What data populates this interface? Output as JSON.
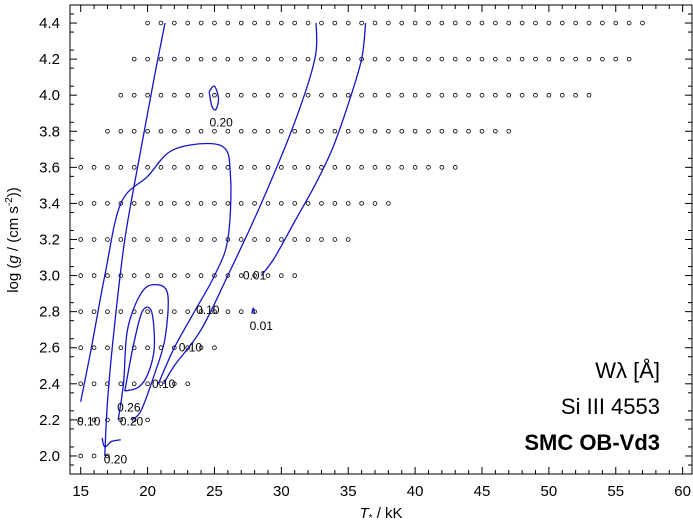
{
  "chart_data": {
    "type": "scatter",
    "title": "",
    "xlabel": "T* / kK",
    "ylabel": "log (g / (cm s^-2))",
    "xlim": [
      14.2,
      60.7
    ],
    "ylim": [
      1.9,
      4.5
    ],
    "x_ticks": [
      15,
      20,
      25,
      30,
      35,
      40,
      45,
      50,
      55,
      60
    ],
    "y_ticks": [
      "2.0",
      "2.2",
      "2.4",
      "2.6",
      "2.8",
      "3.0",
      "3.2",
      "3.4",
      "3.6",
      "3.8",
      "4.0",
      "4.2",
      "4.4"
    ],
    "legend": {
      "quantity": "Wλ [Å]",
      "line": "Si III 4553",
      "grid": "SMC OB-Vd3",
      "placement": "bottom-right"
    },
    "grid_rows": [
      {
        "logg": 4.4,
        "t_min": 20,
        "t_max": 57
      },
      {
        "logg": 4.2,
        "t_min": 19,
        "t_max": 56
      },
      {
        "logg": 4.0,
        "t_min": 18,
        "t_max": 53
      },
      {
        "logg": 3.8,
        "t_min": 17,
        "t_max": 47
      },
      {
        "logg": 3.6,
        "t_min": 15,
        "t_max": 43
      },
      {
        "logg": 3.4,
        "t_min": 15,
        "t_max": 38
      },
      {
        "logg": 3.2,
        "t_min": 15,
        "t_max": 35
      },
      {
        "logg": 3.0,
        "t_min": 15,
        "t_max": 31
      },
      {
        "logg": 2.8,
        "t_min": 15,
        "t_max": 28
      },
      {
        "logg": 2.6,
        "t_min": 15,
        "t_max": 25
      },
      {
        "logg": 2.4,
        "t_min": 15,
        "t_max": 23
      },
      {
        "logg": 2.2,
        "t_min": 15,
        "t_max": 20
      },
      {
        "logg": 2.0,
        "t_min": 15,
        "t_max": 17
      }
    ],
    "contours": [
      {
        "level": "0.01",
        "points": [
          [
            28.5,
            3.0
          ],
          [
            29.5,
            3.1
          ],
          [
            31.0,
            3.3
          ],
          [
            32.5,
            3.5
          ],
          [
            33.8,
            3.7
          ],
          [
            35.0,
            3.95
          ],
          [
            36.0,
            4.2
          ],
          [
            36.3,
            4.4
          ]
        ]
      },
      {
        "level": "0.01",
        "points": [
          [
            27.8,
            2.79
          ],
          [
            27.9,
            2.82
          ],
          [
            28.0,
            2.79
          ]
        ]
      },
      {
        "level": "0.10",
        "points": [
          [
            16.8,
            2.0
          ],
          [
            17.0,
            2.3
          ],
          [
            17.5,
            2.7
          ],
          [
            18.3,
            3.2
          ],
          [
            19.5,
            3.7
          ],
          [
            20.5,
            4.1
          ],
          [
            21.3,
            4.4
          ]
        ]
      },
      {
        "level": "0.10",
        "points": [
          [
            21.2,
            2.4
          ],
          [
            22.0,
            2.5
          ],
          [
            24.0,
            2.7
          ],
          [
            26.0,
            3.0
          ],
          [
            28.5,
            3.4
          ],
          [
            31.0,
            3.85
          ],
          [
            32.5,
            4.2
          ],
          [
            32.6,
            4.4
          ]
        ]
      },
      {
        "level": "0.10",
        "points": [
          [
            15.0,
            2.3
          ],
          [
            15.8,
            2.6
          ],
          [
            16.8,
            3.0
          ],
          [
            18.0,
            3.4
          ],
          [
            20.0,
            3.55
          ],
          [
            22.0,
            3.7
          ],
          [
            25.5,
            3.72
          ],
          [
            26.2,
            3.55
          ],
          [
            26.0,
            3.2
          ],
          [
            25.0,
            3.0
          ],
          [
            23.5,
            2.8
          ],
          [
            22.0,
            2.6
          ],
          [
            20.8,
            2.4
          ]
        ]
      },
      {
        "level": "0.20",
        "points": [
          [
            17.8,
            2.2
          ],
          [
            18.2,
            2.4
          ],
          [
            18.5,
            2.7
          ],
          [
            19.5,
            2.9
          ],
          [
            20.5,
            2.95
          ],
          [
            21.5,
            2.9
          ],
          [
            21.3,
            2.65
          ],
          [
            20.5,
            2.45
          ],
          [
            19.5,
            2.25
          ],
          [
            18.8,
            2.2
          ]
        ]
      },
      {
        "level": "0.20",
        "points": [
          [
            24.6,
            4.02
          ],
          [
            25.0,
            4.05
          ],
          [
            25.3,
            3.98
          ],
          [
            25.1,
            3.92
          ],
          [
            24.8,
            3.94
          ],
          [
            24.6,
            4.02
          ]
        ]
      },
      {
        "level": "0.20",
        "points": [
          [
            16.6,
            2.1
          ],
          [
            16.8,
            2.05
          ],
          [
            17.3,
            2.08
          ],
          [
            18.0,
            2.09
          ]
        ]
      },
      {
        "level": "0.26",
        "points": [
          [
            18.3,
            2.36
          ],
          [
            18.9,
            2.6
          ],
          [
            19.6,
            2.8
          ],
          [
            20.3,
            2.8
          ],
          [
            20.5,
            2.6
          ],
          [
            20.0,
            2.45
          ],
          [
            19.3,
            2.38
          ],
          [
            18.3,
            2.36
          ]
        ]
      }
    ],
    "contour_labels": [
      {
        "text": "0.20",
        "x": 25.5,
        "y": 3.85
      },
      {
        "text": "0.01",
        "x": 28.0,
        "y": 3.0
      },
      {
        "text": "0.10",
        "x": 24.5,
        "y": 2.81
      },
      {
        "text": "0.01",
        "x": 28.5,
        "y": 2.72
      },
      {
        "text": "0.10",
        "x": 23.2,
        "y": 2.6
      },
      {
        "text": "0.10",
        "x": 21.2,
        "y": 2.4
      },
      {
        "text": "0.26",
        "x": 18.6,
        "y": 2.27
      },
      {
        "text": "0.10",
        "x": 15.6,
        "y": 2.19
      },
      {
        "text": "0.20",
        "x": 18.8,
        "y": 2.19
      },
      {
        "text": "0.20",
        "x": 17.6,
        "y": 1.98
      }
    ]
  }
}
